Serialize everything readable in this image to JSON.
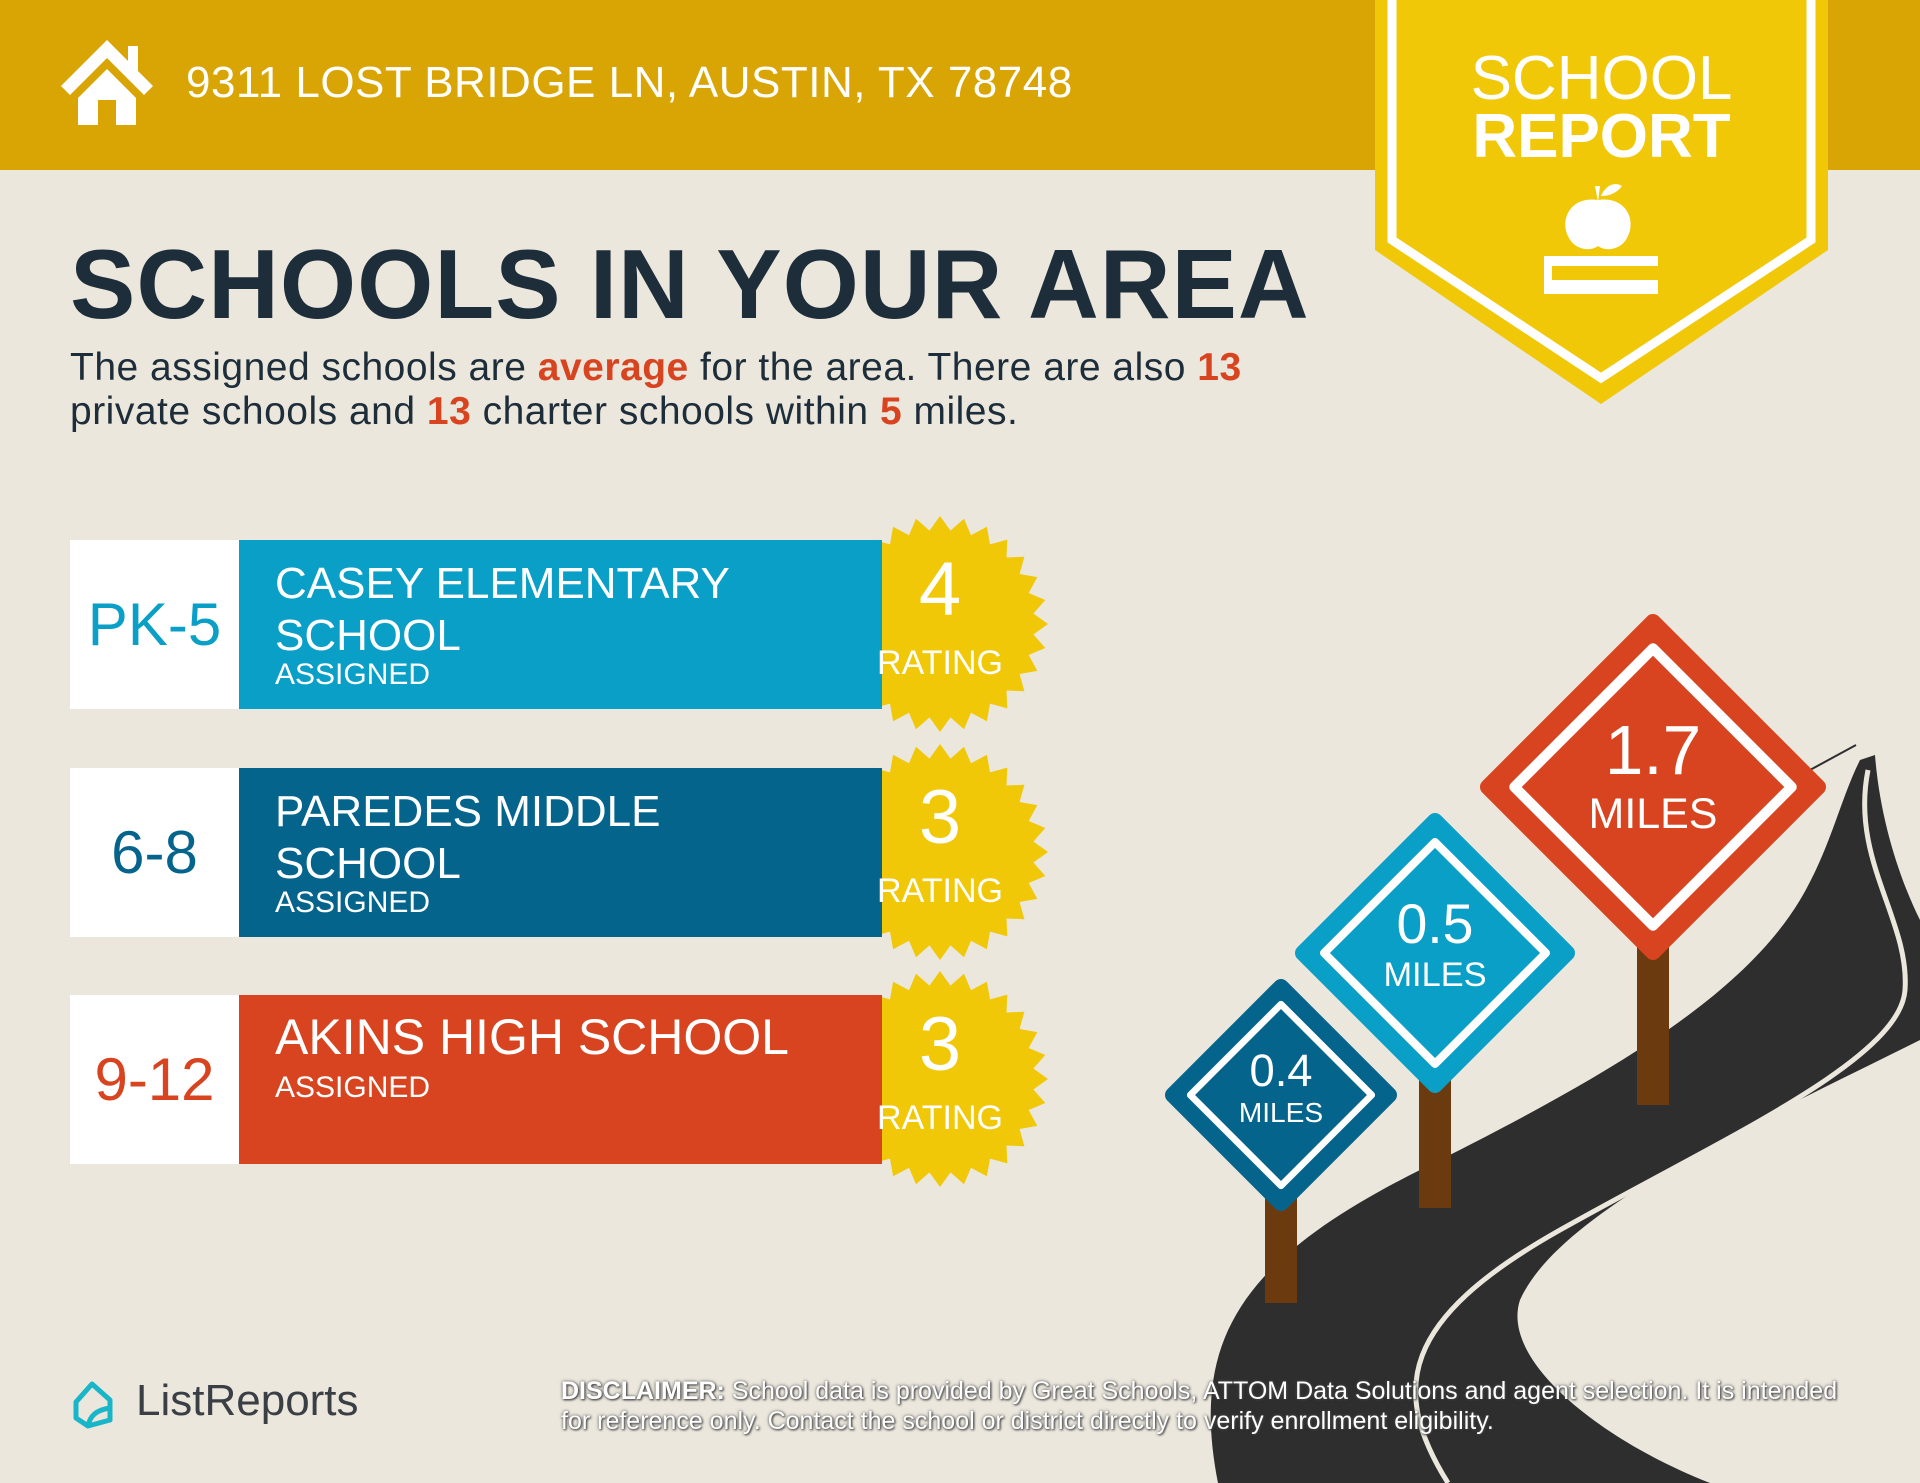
{
  "header": {
    "address": "9311 LOST BRIDGE LN, AUSTIN, TX 78748",
    "icon": "house-icon"
  },
  "banner": {
    "line1": "SCHOOL",
    "line2": "REPORT",
    "icon": "apple-on-book-icon"
  },
  "title": "SCHOOLS IN YOUR AREA",
  "summary": {
    "p1": "The assigned schools are ",
    "rating_word": "average",
    "p2": " for the area. There are also ",
    "private_count": "13",
    "p3": " private schools and ",
    "charter_count": "13",
    "p4": " charter schools within ",
    "radius": "5",
    "p5": " miles."
  },
  "schools": [
    {
      "grades": "PK-5",
      "name": "CASEY ELEMENTARY SCHOOL",
      "status": "ASSIGNED",
      "rating": "4",
      "rating_label": "RATING",
      "color": "#0A9FC6"
    },
    {
      "grades": "6-8",
      "name": "PAREDES MIDDLE SCHOOL",
      "status": "ASSIGNED",
      "rating": "3",
      "rating_label": "RATING",
      "color": "#05648C"
    },
    {
      "grades": "9-12",
      "name": "AKINS HIGH SCHOOL",
      "status": "ASSIGNED",
      "rating": "3",
      "rating_label": "RATING",
      "color": "#D84420"
    }
  ],
  "distances": [
    {
      "value": "0.4",
      "unit": "MILES",
      "color": "#05648C"
    },
    {
      "value": "0.5",
      "unit": "MILES",
      "color": "#0A9FC6"
    },
    {
      "value": "1.7",
      "unit": "MILES",
      "color": "#D84420"
    }
  ],
  "footer": {
    "logo_text": "ListReports",
    "disclaimer_label": "DISCLAIMER:",
    "disclaimer_text": " School data is provided by Great Schools, ATTOM Data Solutions and agent selection. It is intended for reference only. Contact the school or district directly to verify enrollment eligibility."
  },
  "colors": {
    "header": "#D9A505",
    "banner": "#F0C808",
    "background": "#EBE7DD",
    "title": "#1E2D3A",
    "highlight": "#D84420",
    "badge": "#F0C808",
    "road": "#2E2E2E",
    "post": "#6B3A0E"
  }
}
